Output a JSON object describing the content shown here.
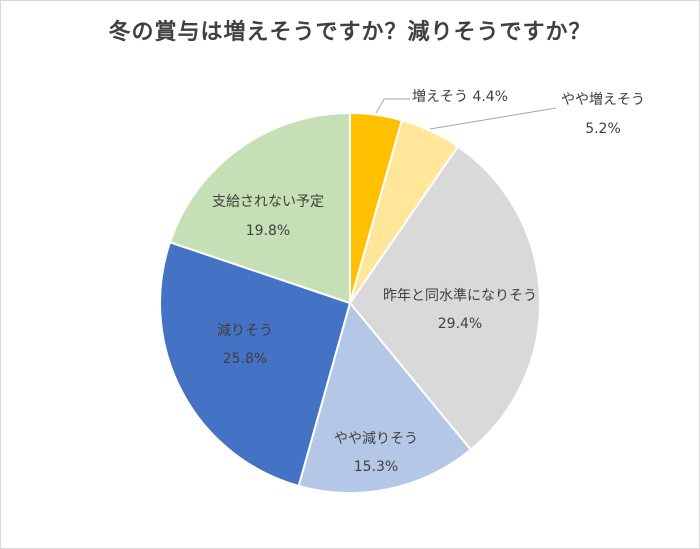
{
  "chart_data": {
    "type": "pie",
    "title": "冬の賞与は増えそうですか？減りそうですか？",
    "start_angle_deg": 0,
    "direction": "clockwise",
    "slices": [
      {
        "label": "増えそう",
        "value": 4.4,
        "display": "4.4%",
        "color": "#ffc000"
      },
      {
        "label": "やや増えそう",
        "value": 5.2,
        "display": "5.2%",
        "color": "#ffe699"
      },
      {
        "label": "昨年と同水準になりそう",
        "value": 29.4,
        "display": "29.4%",
        "color": "#d9d9d9"
      },
      {
        "label": "やや減りそう",
        "value": 15.3,
        "display": "15.3%",
        "color": "#b4c7e7"
      },
      {
        "label": "減りそう",
        "value": 25.8,
        "display": "25.8%",
        "color": "#4472c4"
      },
      {
        "label": "支給されない予定",
        "value": 19.8,
        "display": "19.8%",
        "color": "#c5e0b4"
      }
    ]
  }
}
